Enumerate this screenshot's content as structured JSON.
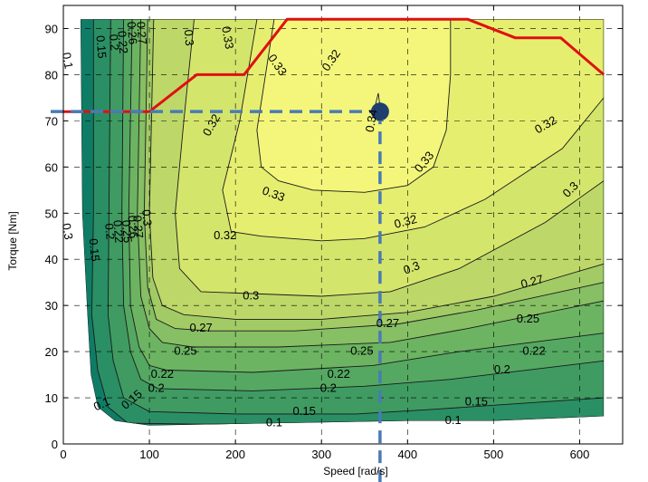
{
  "chart_data": {
    "type": "contour",
    "title": "",
    "xlabel": "Speed [rad/s]",
    "ylabel": "Torque [Nm]",
    "xlim": [
      0,
      650
    ],
    "ylim": [
      0,
      95
    ],
    "xticks": [
      0,
      100,
      200,
      300,
      400,
      500,
      600
    ],
    "yticks": [
      0,
      10,
      20,
      30,
      40,
      50,
      60,
      70,
      80,
      90
    ],
    "grid": true,
    "levels": [
      0.1,
      0.15,
      0.2,
      0.22,
      0.25,
      0.26,
      0.27,
      0.3,
      0.32,
      0.33,
      0.34
    ],
    "fill_colors": [
      "#0f7d66",
      "#2a8f64",
      "#3f9b62",
      "#55a862",
      "#6cb462",
      "#86bf64",
      "#a2cb66",
      "#bdd868",
      "#d4e56c",
      "#e6ee70",
      "#f3f67a"
    ],
    "envelope": [
      [
        20,
        92
      ],
      [
        628,
        92
      ],
      [
        628,
        6
      ],
      [
        500,
        5
      ],
      [
        400,
        5
      ],
      [
        100,
        4
      ],
      [
        60,
        5
      ],
      [
        40,
        8
      ],
      [
        32,
        15
      ],
      [
        28,
        28
      ],
      [
        22,
        50
      ],
      [
        20,
        92
      ]
    ],
    "contours": [
      {
        "level": 0.1,
        "points": [
          [
            35,
            92
          ],
          [
            35,
            50
          ],
          [
            33,
            28
          ],
          [
            40,
            16
          ],
          [
            52,
            8
          ],
          [
            75,
            4.5
          ],
          [
            150,
            4.3
          ],
          [
            300,
            4.2
          ],
          [
            400,
            4.5
          ],
          [
            628,
            5
          ]
        ]
      },
      {
        "level": 0.15,
        "points": [
          [
            55,
            92
          ],
          [
            53,
            50
          ],
          [
            52,
            28
          ],
          [
            58,
            18
          ],
          [
            70,
            10
          ],
          [
            100,
            7
          ],
          [
            200,
            6.5
          ],
          [
            340,
            6.5
          ],
          [
            430,
            7.5
          ],
          [
            628,
            10
          ]
        ]
      },
      {
        "level": 0.2,
        "points": [
          [
            70,
            92
          ],
          [
            68,
            50
          ],
          [
            70,
            30
          ],
          [
            78,
            20
          ],
          [
            90,
            14
          ],
          [
            110,
            12
          ],
          [
            220,
            11.5
          ],
          [
            350,
            12.5
          ],
          [
            450,
            14
          ],
          [
            628,
            18
          ]
        ]
      },
      {
        "level": 0.22,
        "points": [
          [
            80,
            92
          ],
          [
            76,
            50
          ],
          [
            78,
            30
          ],
          [
            88,
            21
          ],
          [
            100,
            17
          ],
          [
            120,
            16
          ],
          [
            220,
            15.5
          ],
          [
            360,
            17
          ],
          [
            460,
            20
          ],
          [
            628,
            24
          ]
        ]
      },
      {
        "level": 0.25,
        "points": [
          [
            90,
            92
          ],
          [
            86,
            50
          ],
          [
            90,
            32
          ],
          [
            100,
            25
          ],
          [
            115,
            22
          ],
          [
            150,
            21
          ],
          [
            250,
            21
          ],
          [
            380,
            22
          ],
          [
            470,
            25
          ],
          [
            628,
            31
          ]
        ]
      },
      {
        "level": 0.26,
        "points": [
          [
            98,
            92
          ],
          [
            94,
            50
          ],
          [
            98,
            34
          ],
          [
            108,
            27
          ],
          [
            130,
            25
          ],
          [
            170,
            24.5
          ],
          [
            270,
            24.5
          ],
          [
            390,
            26
          ],
          [
            480,
            29
          ],
          [
            628,
            35
          ]
        ]
      },
      {
        "level": 0.27,
        "points": [
          [
            105,
            92
          ],
          [
            100,
            50
          ],
          [
            104,
            36
          ],
          [
            115,
            30
          ],
          [
            140,
            28
          ],
          [
            200,
            27
          ],
          [
            300,
            27
          ],
          [
            400,
            28.5
          ],
          [
            500,
            32
          ],
          [
            628,
            39
          ]
        ]
      },
      {
        "level": 0.3,
        "points": [
          [
            152,
            92
          ],
          [
            140,
            70
          ],
          [
            130,
            50
          ],
          [
            135,
            38
          ],
          [
            160,
            33
          ],
          [
            300,
            32
          ],
          [
            380,
            33
          ],
          [
            460,
            38
          ],
          [
            560,
            48
          ],
          [
            628,
            57
          ]
        ]
      },
      {
        "level": 0.32,
        "points": [
          [
            225,
            92
          ],
          [
            205,
            70
          ],
          [
            185,
            55
          ],
          [
            195,
            46
          ],
          [
            230,
            45
          ],
          [
            300,
            44
          ],
          [
            350,
            44.5
          ],
          [
            420,
            47
          ],
          [
            490,
            53
          ],
          [
            580,
            64
          ],
          [
            628,
            75
          ]
        ]
      },
      {
        "level": 0.33,
        "points": [
          [
            245,
            92
          ],
          [
            235,
            80
          ],
          [
            225,
            68
          ],
          [
            230,
            60
          ],
          [
            250,
            57
          ],
          [
            290,
            55
          ],
          [
            350,
            54.5
          ],
          [
            400,
            56
          ],
          [
            430,
            60
          ],
          [
            445,
            68
          ],
          [
            450,
            80
          ],
          [
            450,
            92
          ]
        ]
      },
      {
        "level": 0.34,
        "points": [
          [
            365,
            70
          ],
          [
            368,
            73
          ],
          [
            366,
            76
          ],
          [
            362,
            73
          ],
          [
            365,
            70
          ]
        ]
      }
    ],
    "contour_labels": [
      {
        "text": "0.1",
        "x": 4,
        "y": 83,
        "angle": 80
      },
      {
        "text": "0.15",
        "x": 43,
        "y": 86,
        "angle": 85
      },
      {
        "text": "0.2",
        "x": 58,
        "y": 87,
        "angle": 85
      },
      {
        "text": "0.22",
        "x": 68,
        "y": 87,
        "angle": 85
      },
      {
        "text": "0.26",
        "x": 79,
        "y": 89,
        "angle": 85
      },
      {
        "text": "0.27",
        "x": 90,
        "y": 89,
        "angle": 85
      },
      {
        "text": "0.3",
        "x": 145,
        "y": 88,
        "angle": 85
      },
      {
        "text": "0.33",
        "x": 190,
        "y": 88,
        "angle": 80
      },
      {
        "text": "0.33",
        "x": 248,
        "y": 82,
        "angle": 55
      },
      {
        "text": "0.32",
        "x": 312,
        "y": 83,
        "angle": -55
      },
      {
        "text": "0.32",
        "x": 173,
        "y": 69,
        "angle": -60
      },
      {
        "text": "0.34",
        "x": 359,
        "y": 70,
        "angle": -80
      },
      {
        "text": "0.32",
        "x": 561,
        "y": 69,
        "angle": -30
      },
      {
        "text": "0.33",
        "x": 420,
        "y": 61,
        "angle": -50
      },
      {
        "text": "0.3",
        "x": 590,
        "y": 55,
        "angle": -45
      },
      {
        "text": "0.33",
        "x": 244,
        "y": 54,
        "angle": 20
      },
      {
        "text": "0.32",
        "x": 398,
        "y": 48,
        "angle": -15
      },
      {
        "text": "0.32",
        "x": 188,
        "y": 45,
        "angle": 0
      },
      {
        "text": "0.3",
        "x": 4,
        "y": 46,
        "angle": 80
      },
      {
        "text": "0.15",
        "x": 35,
        "y": 42,
        "angle": 85
      },
      {
        "text": "0.2",
        "x": 53,
        "y": 46,
        "angle": 85
      },
      {
        "text": "0.22",
        "x": 63,
        "y": 46,
        "angle": 85
      },
      {
        "text": "0.25",
        "x": 73,
        "y": 46,
        "angle": 85
      },
      {
        "text": "0.26",
        "x": 80,
        "y": 47,
        "angle": 85
      },
      {
        "text": "0.27",
        "x": 86,
        "y": 47,
        "angle": 85
      },
      {
        "text": "0.3",
        "x": 96,
        "y": 49,
        "angle": 85
      },
      {
        "text": "0.3",
        "x": 218,
        "y": 32,
        "angle": 0
      },
      {
        "text": "0.3",
        "x": 405,
        "y": 38,
        "angle": -20
      },
      {
        "text": "0.27",
        "x": 545,
        "y": 35,
        "angle": -15
      },
      {
        "text": "0.27",
        "x": 160,
        "y": 25,
        "angle": 0
      },
      {
        "text": "0.27",
        "x": 377,
        "y": 26,
        "angle": 0
      },
      {
        "text": "0.25",
        "x": 540,
        "y": 27,
        "angle": 0
      },
      {
        "text": "0.25",
        "x": 142,
        "y": 20,
        "angle": 0
      },
      {
        "text": "0.25",
        "x": 347,
        "y": 20,
        "angle": 0
      },
      {
        "text": "0.22",
        "x": 547,
        "y": 20,
        "angle": 0
      },
      {
        "text": "0.22",
        "x": 115,
        "y": 15,
        "angle": 0
      },
      {
        "text": "0.22",
        "x": 320,
        "y": 15,
        "angle": 0
      },
      {
        "text": "0.2",
        "x": 510,
        "y": 16,
        "angle": 0
      },
      {
        "text": "0.2",
        "x": 108,
        "y": 12,
        "angle": 0
      },
      {
        "text": "0.2",
        "x": 308,
        "y": 12,
        "angle": 0
      },
      {
        "text": "0.15",
        "x": 480,
        "y": 9,
        "angle": 0
      },
      {
        "text": "0.1",
        "x": 45,
        "y": 8.5,
        "angle": -25
      },
      {
        "text": "0.15",
        "x": 80,
        "y": 9.5,
        "angle": -40
      },
      {
        "text": "0.15",
        "x": 280,
        "y": 7,
        "angle": 0
      },
      {
        "text": "0.1",
        "x": 245,
        "y": 4.5,
        "angle": 0
      },
      {
        "text": "0.1",
        "x": 453,
        "y": 5,
        "angle": 0
      }
    ],
    "max_torque_curve": [
      [
        0,
        72
      ],
      [
        100,
        72
      ],
      [
        155,
        80
      ],
      [
        210,
        80
      ],
      [
        260,
        92
      ],
      [
        470,
        92
      ],
      [
        525,
        88
      ],
      [
        578,
        88
      ],
      [
        628,
        80
      ]
    ],
    "max_torque_color": "#e01010",
    "operating_point": {
      "x": 368,
      "y": 72,
      "color": "#1f3f6e"
    },
    "guide_color": "#4a7ab5",
    "axis_color": "#000000",
    "grid_color": "#000000"
  }
}
